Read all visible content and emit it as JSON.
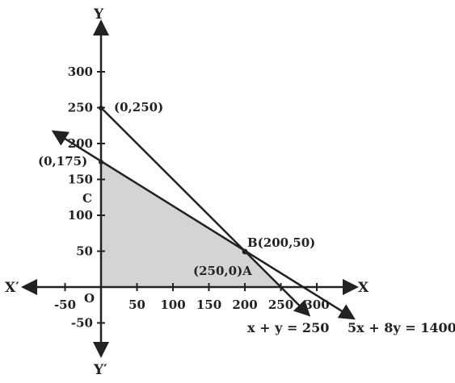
{
  "axes": {
    "x_name": "X",
    "x_neg_name": "X′",
    "y_name": "Y",
    "y_neg_name": "Y′",
    "origin": "O"
  },
  "ticks": {
    "x": [
      {
        "value": -50,
        "label": "-50"
      },
      {
        "value": 50,
        "label": "50"
      },
      {
        "value": 100,
        "label": "100"
      },
      {
        "value": 150,
        "label": "150"
      },
      {
        "value": 200,
        "label": "200"
      },
      {
        "value": 250,
        "label": "250"
      },
      {
        "value": 300,
        "label": "300"
      }
    ],
    "y": [
      {
        "value": -50,
        "label": "-50"
      },
      {
        "value": 50,
        "label": "50"
      },
      {
        "value": 100,
        "label": "100"
      },
      {
        "value": 150,
        "label": "150"
      },
      {
        "value": 200,
        "label": "200"
      },
      {
        "value": 250,
        "label": "250"
      },
      {
        "value": 300,
        "label": "300"
      }
    ]
  },
  "lines": [
    {
      "equation": "x + y = 250",
      "color": "#222222"
    },
    {
      "equation": "5x + 8y = 1400",
      "color": "#222222"
    }
  ],
  "points": {
    "p_0_250": {
      "x": 0,
      "y": 250,
      "label": "(0,250)"
    },
    "p_0_175": {
      "x": 0,
      "y": 175,
      "label": "(0,175)"
    },
    "B": {
      "x": 200,
      "y": 50,
      "label": "B(200,50)"
    },
    "A": {
      "label": "(250,0)A"
    },
    "C": {
      "label": "C"
    }
  },
  "feasible_region": {
    "vertices": [
      [
        0,
        0
      ],
      [
        250,
        0
      ],
      [
        200,
        50
      ],
      [
        0,
        175
      ]
    ],
    "fill": "#d4d4d4"
  }
}
